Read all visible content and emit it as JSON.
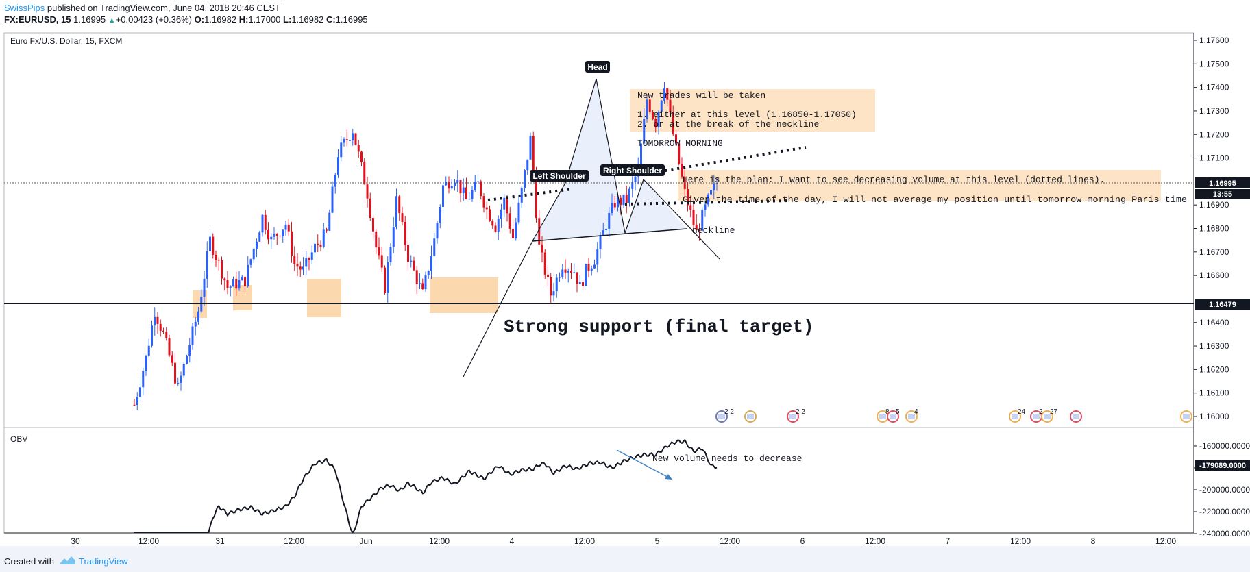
{
  "header": {
    "author": "SwissPips",
    "published": "published on TradingView.com, June 04, 2018 20:46 CEST",
    "symbol": "FX:EURUSD, 15",
    "last": "1.16995",
    "change": "+0.00423 (+0.36%)",
    "o_label": "O:",
    "o_value": "1.16982",
    "h_label": "H:",
    "h_value": "1.17000",
    "l_label": "L:",
    "l_value": "1.16982",
    "c_label": "C:",
    "c_value": "1.16995"
  },
  "footer": {
    "created_with": "Created with",
    "brand": "TradingView"
  },
  "colors": {
    "up": "#2962ff",
    "down": "#e0101c",
    "zone": "#fbd8ae",
    "note_bg": "#fde4c6",
    "obv_arrow": "#3d85c6",
    "pattern_fill": "#e8eefb"
  },
  "chart_data": [
    {
      "type": "candlestick",
      "title": "Euro Fx/U.S. Dollar, 15, FXCM",
      "ylim": [
        1.1595,
        1.1765
      ],
      "y_ticks": [
        1.176,
        1.175,
        1.174,
        1.173,
        1.172,
        1.171,
        1.169,
        1.168,
        1.167,
        1.166,
        1.164,
        1.163,
        1.162,
        1.161,
        1.16
      ],
      "x_ticks": [
        "30",
        "12:00",
        "31",
        "12:00",
        "Jun",
        "12:00",
        "4",
        "12:00",
        "5",
        "12:00",
        "6",
        "12:00",
        "7",
        "12:00",
        "8",
        "12:00"
      ],
      "price_labels": {
        "last": "1.16995",
        "countdown": "13:55",
        "support": "1.16479"
      },
      "support_level": 1.16479,
      "series": [
        {
          "name": "EURUSD",
          "anchors_t": [
            0,
            4,
            7,
            10,
            15,
            22,
            26,
            32,
            38,
            44,
            47,
            52,
            55,
            58,
            62,
            66,
            70,
            75,
            80,
            83,
            86,
            90,
            94,
            99,
            103,
            106,
            110,
            114,
            118,
            121,
            124,
            127,
            130,
            133,
            136,
            139,
            143,
            147,
            151,
            153,
            155,
            158,
            162,
            165,
            169,
            173,
            176,
            179,
            182,
            185,
            189,
            193,
            197,
            200
          ],
          "anchors_price": [
            1.1605,
            1.1625,
            1.1645,
            1.1635,
            1.1612,
            1.1645,
            1.1675,
            1.1655,
            1.1658,
            1.1685,
            1.1675,
            1.1682,
            1.1665,
            1.1662,
            1.1672,
            1.1678,
            1.1712,
            1.1722,
            1.1695,
            1.1672,
            1.1655,
            1.1692,
            1.1668,
            1.1652,
            1.1675,
            1.1698,
            1.1702,
            1.1692,
            1.1699,
            1.1688,
            1.1681,
            1.1692,
            1.1676,
            1.1696,
            1.1718,
            1.1672,
            1.1652,
            1.1665,
            1.1662,
            1.1655,
            1.1662,
            1.1667,
            1.1682,
            1.1691,
            1.1692,
            1.1705,
            1.1735,
            1.1725,
            1.1742,
            1.172,
            1.1695,
            1.1678,
            1.1692,
            1.16995
          ]
        }
      ],
      "annotations": {
        "head": "Head",
        "left_shoulder": "Left Shoulder",
        "right_shoulder": "Right Shoulder",
        "neckline": "neckline",
        "note1_title": "New trades will be taken",
        "note1_line1": "1. either at this level (1.16850-1.17050)",
        "note1_line2": "2. or at the break of the neckline",
        "tomorrow": "TOMORROW MORNING",
        "plan_line1": "Here is the plan: I want to see decreasing volume at this level (dotted lines).",
        "plan_line2": "Given the time of the day, I will not average my position until tomorrow morning Paris time",
        "support_text": "Strong support (final target)"
      },
      "events": [
        "2 2",
        "2 2",
        "8",
        "5",
        "4",
        "24",
        "2",
        "27"
      ]
    },
    {
      "type": "line",
      "title": "OBV",
      "ylim": [
        -245000,
        -148000
      ],
      "y_ticks": [
        "-160000.0000",
        "-180000.0000",
        "-200000.0000",
        "-220000.0000",
        "-240000.0000"
      ],
      "last_value": "-179089.0000",
      "annotation": "New volume needs to decrease",
      "anchors_t": [
        0,
        20,
        25,
        27,
        29,
        32,
        36,
        40,
        44,
        48,
        52,
        55,
        58,
        62,
        66,
        69,
        72,
        75,
        78,
        81,
        85,
        88,
        91,
        94,
        96,
        99,
        102,
        106,
        110,
        115,
        120,
        125,
        129,
        133,
        137,
        139,
        141,
        144,
        148,
        152,
        156,
        160,
        164,
        168,
        172,
        175,
        179,
        183,
        186,
        189,
        192,
        195,
        198,
        200
      ],
      "anchors_obv": [
        -250000,
        -250000,
        -245000,
        -225000,
        -215000,
        -222000,
        -218000,
        -216000,
        -222000,
        -219000,
        -215000,
        -206000,
        -190000,
        -176000,
        -173000,
        -182000,
        -213000,
        -242000,
        -215000,
        -208000,
        -198000,
        -196000,
        -201000,
        -194000,
        -197000,
        -203000,
        -193000,
        -189000,
        -195000,
        -183000,
        -190000,
        -178000,
        -186000,
        -182000,
        -181000,
        -177000,
        -176000,
        -185000,
        -178000,
        -181000,
        -176000,
        -175000,
        -180000,
        -174000,
        -170000,
        -168000,
        -168000,
        -160000,
        -156000,
        -156000,
        -165000,
        -162000,
        -178000,
        -179089
      ]
    }
  ]
}
